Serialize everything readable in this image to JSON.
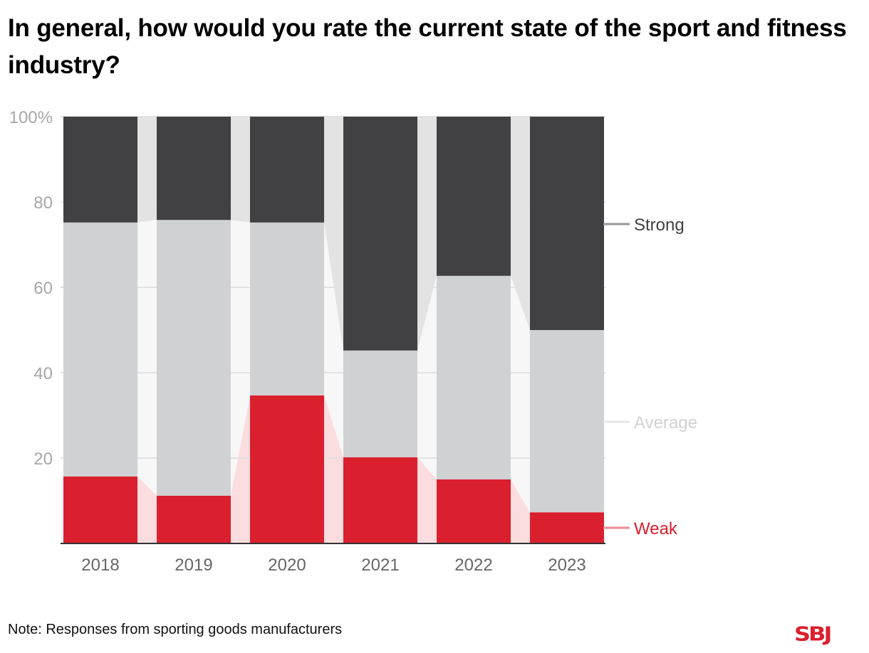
{
  "title": "In general, how would you rate the current state of the sport and fitness industry?",
  "note": "Note: Responses from sporting goods manufacturers",
  "logo": "SBJ",
  "colors": {
    "Weak": "#da202e",
    "Average": "#d0d1d3",
    "Strong": "#414143",
    "Weak_band": "#fbdcdf",
    "Average_band": "#f7f7f7",
    "Strong_band": "#e3e3e3",
    "Weak_label": "#da202e",
    "Average_label": "#d0d1d3",
    "Strong_label": "#414143",
    "Weak_leader": "#ee8a93",
    "Average_leader": "#e6e6e6",
    "Strong_leader": "#999999"
  },
  "chart_data": {
    "type": "bar",
    "stacked": true,
    "title": "In general, how would you rate the current state of the sport and fitness industry?",
    "xlabel": "",
    "ylabel": "",
    "categories": [
      "2018",
      "2019",
      "2020",
      "2021",
      "2022",
      "2023"
    ],
    "series": [
      {
        "name": "Weak",
        "values": [
          15.7,
          11.2,
          34.7,
          20.2,
          15.0,
          7.3
        ]
      },
      {
        "name": "Average",
        "values": [
          59.5,
          64.6,
          40.5,
          25.0,
          47.7,
          42.7
        ]
      },
      {
        "name": "Strong",
        "values": [
          24.8,
          24.2,
          24.8,
          54.8,
          37.3,
          50.0
        ]
      }
    ],
    "ylim": [
      0,
      100
    ],
    "yticks": [
      0,
      20,
      40,
      60,
      80,
      100
    ],
    "ytick_labels": [
      "",
      "20",
      "40",
      "60",
      "80",
      "100%"
    ],
    "grid": true,
    "legend": "right (direct labels)",
    "legend_entries": [
      "Strong",
      "Average",
      "Weak"
    ]
  }
}
